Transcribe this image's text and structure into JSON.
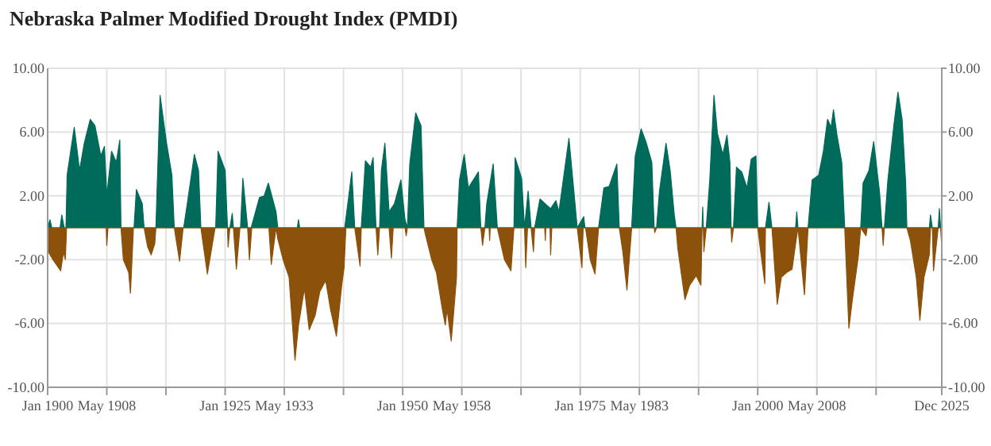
{
  "chart_data": {
    "type": "area",
    "title": "Nebraska Palmer Modified Drought Index (PMDI)",
    "xlim": [
      "1900-01",
      "2025-12"
    ],
    "xticks": [
      {
        "value": "1900-01",
        "label": "Jan 1900"
      },
      {
        "value": "1908-05",
        "label": "May 1908"
      },
      {
        "value": "1916-09",
        "label": null
      },
      {
        "value": "1925-01",
        "label": "Jan 1925"
      },
      {
        "value": "1933-05",
        "label": "May 1933"
      },
      {
        "value": "1941-09",
        "label": null
      },
      {
        "value": "1950-01",
        "label": "Jan 1950"
      },
      {
        "value": "1958-05",
        "label": "May 1958"
      },
      {
        "value": "1966-09",
        "label": null
      },
      {
        "value": "1975-01",
        "label": "Jan 1975"
      },
      {
        "value": "1983-05",
        "label": "May 1983"
      },
      {
        "value": "1991-09",
        "label": null
      },
      {
        "value": "2000-01",
        "label": "Jan 2000"
      },
      {
        "value": "2008-05",
        "label": "May 2008"
      },
      {
        "value": "2016-09",
        "label": null
      },
      {
        "value": "2025-12",
        "label": "Dec 2025"
      }
    ],
    "ylim": [
      -10,
      10
    ],
    "yticks": [
      {
        "value": -10,
        "label": "-10.00"
      },
      {
        "value": -6,
        "label": "-6.00"
      },
      {
        "value": -2,
        "label": "-2.00"
      },
      {
        "value": 2,
        "label": "2.00"
      },
      {
        "value": 6,
        "label": "6.00"
      },
      {
        "value": 10,
        "label": "10.00"
      }
    ],
    "y2lim": [
      -10,
      10
    ],
    "y2ticks": [
      {
        "value": -10,
        "label": "-10.00"
      },
      {
        "value": -6,
        "label": "-6.00"
      },
      {
        "value": -2,
        "label": "-2.00"
      },
      {
        "value": 2,
        "label": "2.00"
      },
      {
        "value": 6,
        "label": "6.00"
      },
      {
        "value": 10,
        "label": "10.00"
      }
    ],
    "grid": true,
    "series": [
      {
        "color": "#006a5b",
        "x": [
          "1900-01",
          "1900-05",
          "1900-08",
          "1901-10",
          "1902-01",
          "1902-05",
          "1902-08",
          "1902-10",
          "1903-10",
          "1904-07",
          "1905-03",
          "1906-01",
          "1906-09",
          "1907-07",
          "1908-01",
          "1908-05",
          "1909-01",
          "1909-09",
          "1910-03",
          "1910-05",
          "1912-03",
          "1912-07",
          "1913-05",
          "1913-08",
          "1915-04",
          "1915-11",
          "1916-10",
          "1917-07",
          "1917-11",
          "1919-03",
          "1919-09",
          "1920-09",
          "1921-04",
          "1921-08",
          "1923-09",
          "1924-01",
          "1925-01",
          "1925-05",
          "1925-09",
          "1926-01",
          "1926-03",
          "1927-03",
          "1927-07",
          "1928-03",
          "1928-09",
          "1929-11",
          "1930-07",
          "1931-02",
          "1932-03",
          "1932-06",
          "1935-03",
          "1935-05",
          "1935-07",
          "1941-11",
          "1942-06",
          "1942-11",
          "1943-04",
          "1944-03",
          "1944-10",
          "1945-07",
          "1945-11",
          "1946-04",
          "1946-10",
          "1947-01",
          "1947-07",
          "1948-02",
          "1948-11",
          "1949-10",
          "1950-05",
          "1950-09",
          "1951-01",
          "1951-11",
          "1952-08",
          "1953-01",
          "1957-09",
          "1958-01",
          "1958-09",
          "1959-04",
          "1960-09",
          "1961-01",
          "1961-08",
          "1961-11",
          "1962-10",
          "1963-05",
          "1965-09",
          "1965-11",
          "1966-10",
          "1967-03",
          "1967-09",
          "1968-02",
          "1968-08",
          "1969-05",
          "1970-02",
          "1970-11",
          "1971-08",
          "1972-01",
          "1973-06",
          "1974-08",
          "1975-07",
          "1975-09",
          "1977-08",
          "1978-05",
          "1979-02",
          "1980-03",
          "1980-07",
          "1982-04",
          "1982-10",
          "1983-08",
          "1984-04",
          "1985-02",
          "1985-06",
          "1985-10",
          "1986-03",
          "1987-02",
          "1987-09",
          "1988-04",
          "1988-07",
          "1992-03",
          "1992-04",
          "1992-05",
          "1992-10",
          "1993-04",
          "1993-11",
          "1994-05",
          "1995-02",
          "1995-09",
          "1996-02",
          "1996-04",
          "1996-08",
          "1997-01",
          "1997-10",
          "1998-07",
          "1999-02",
          "1999-10",
          "2000-01",
          "2001-02",
          "2001-08",
          "2002-01",
          "2005-05",
          "2005-07",
          "2005-09",
          "2007-02",
          "2007-09",
          "2008-08",
          "2009-04",
          "2009-11",
          "2010-05",
          "2010-09",
          "2011-03",
          "2011-11",
          "2012-04",
          "2014-07",
          "2014-11",
          "2015-09",
          "2016-05",
          "2017-03",
          "2017-07",
          "2017-11",
          "2018-05",
          "2019-03",
          "2019-10",
          "2020-05",
          "2020-11",
          "2021-01",
          "2024-03",
          "2024-05",
          "2024-08",
          "2025-06",
          "2025-08",
          "2025-10"
        ],
        "values": [
          0,
          0.5,
          0,
          0,
          0.8,
          0,
          0,
          3.3,
          6.3,
          3.6,
          5.3,
          6.8,
          6.4,
          4.5,
          5.1,
          2.0,
          4.8,
          4.1,
          5.5,
          0,
          0,
          2.4,
          1.5,
          0,
          0,
          8.3,
          5.3,
          3.3,
          0,
          0,
          1.5,
          4.6,
          3.6,
          0,
          0,
          4.8,
          3.6,
          0,
          0,
          0.9,
          0,
          0,
          3.1,
          0,
          0,
          1.9,
          2.0,
          2.8,
          1.0,
          0,
          0,
          0.5,
          0,
          0,
          2.0,
          3.5,
          0,
          0,
          4.2,
          3.8,
          4.4,
          0,
          0,
          3.6,
          5.3,
          1.0,
          1.5,
          3.0,
          0.5,
          0,
          4.0,
          7.2,
          6.4,
          0,
          0,
          3.0,
          4.6,
          2.5,
          3.5,
          0,
          0,
          1.5,
          4.0,
          0,
          0,
          4.4,
          3.1,
          0,
          2.3,
          0,
          0,
          1.8,
          1.5,
          1.2,
          1.7,
          1.0,
          5.6,
          0,
          0.7,
          0,
          0,
          2.5,
          2.6,
          4.0,
          0,
          0,
          4.5,
          6.2,
          5.4,
          4.1,
          0,
          0,
          2.3,
          5.3,
          3.6,
          0.8,
          0,
          0,
          1.3,
          0,
          0,
          3.0,
          8.3,
          5.9,
          4.6,
          5.8,
          4.1,
          0,
          0,
          3.8,
          3.5,
          2.5,
          4.3,
          4.5,
          0,
          0,
          1.6,
          0,
          0,
          1.0,
          0,
          0,
          3.0,
          3.3,
          4.8,
          6.8,
          6.3,
          7.4,
          5.8,
          4.1,
          0,
          0,
          2.8,
          3.6,
          5.4,
          2.2,
          0,
          0,
          3.0,
          6.4,
          8.5,
          6.8,
          2.8,
          0,
          0,
          0.8,
          0,
          0,
          1.2,
          0
        ]
      },
      {
        "color": "#8c510a",
        "x": [
          "1900-01",
          "1900-02",
          "1900-10",
          "1901-11",
          "1902-04",
          "1902-07",
          "1902-09",
          "1908-04",
          "1908-05",
          "1908-07",
          "1910-05",
          "1910-09",
          "1911-06",
          "1911-09",
          "1912-02",
          "1913-08",
          "1914-02",
          "1914-08",
          "1915-02",
          "1915-04",
          "1917-11",
          "1918-08",
          "1919-02",
          "1921-08",
          "1922-07",
          "1923-08",
          "1925-05",
          "1925-06",
          "1925-09",
          "1926-03",
          "1926-08",
          "1927-02",
          "1928-03",
          "1928-06",
          "1928-10",
          "1931-03",
          "1931-07",
          "1932-03",
          "1932-06",
          "1933-03",
          "1934-01",
          "1934-11",
          "1935-05",
          "1936-03",
          "1936-11",
          "1937-09",
          "1938-05",
          "1939-03",
          "1939-11",
          "1940-09",
          "1941-06",
          "1941-10",
          "1942-01",
          "1943-04",
          "1944-01",
          "1944-03",
          "1946-04",
          "1946-07",
          "1946-10",
          "1948-02",
          "1948-06",
          "1948-09",
          "1950-05",
          "1950-07",
          "1950-09",
          "1953-01",
          "1953-04",
          "1954-02",
          "1954-10",
          "1955-08",
          "1956-01",
          "1956-04",
          "1956-11",
          "1957-03",
          "1957-08",
          "1957-09",
          "1961-01",
          "1961-04",
          "1961-08",
          "1962-03",
          "1962-04",
          "1962-05",
          "1963-05",
          "1964-05",
          "1965-04",
          "1965-09",
          "1967-03",
          "1967-05",
          "1967-08",
          "1968-02",
          "1968-06",
          "1968-08",
          "1970-01",
          "1970-02",
          "1970-03",
          "1970-10",
          "1970-11",
          "1971-01",
          "1974-08",
          "1975-04",
          "1975-06",
          "1975-10",
          "1976-06",
          "1977-02",
          "1977-08",
          "1980-07",
          "1981-01",
          "1981-08",
          "1982-04",
          "1985-06",
          "1985-07",
          "1985-10",
          "1988-07",
          "1988-10",
          "1989-10",
          "1990-06",
          "1991-05",
          "1992-01",
          "1992-03",
          "1992-05",
          "1992-06",
          "1992-10",
          "1996-04",
          "1996-05",
          "1996-08",
          "2000-01",
          "2000-06",
          "2001-01",
          "2001-02",
          "2002-01",
          "2002-10",
          "2003-05",
          "2004-02",
          "2004-11",
          "2005-05",
          "2005-09",
          "2006-08",
          "2007-02",
          "2012-04",
          "2012-11",
          "2013-05",
          "2014-03",
          "2014-07",
          "2015-04",
          "2015-06",
          "2017-07",
          "2017-09",
          "2017-11",
          "2021-01",
          "2021-07",
          "2022-05",
          "2022-11",
          "2023-06",
          "2024-03",
          "2024-05",
          "2024-08",
          "2024-10",
          "2025-06",
          "2025-10",
          "2025-12"
        ],
        "values": [
          0,
          -1.5,
          -2.0,
          -2.7,
          -1.5,
          -2.0,
          0,
          0,
          -1.1,
          0,
          0,
          -2.0,
          -2.8,
          -4.1,
          0,
          0,
          -1.2,
          -1.7,
          -1.0,
          0,
          0,
          -2.1,
          0,
          0,
          -2.9,
          0,
          0,
          -1.2,
          0,
          0,
          -2.6,
          0,
          0,
          -2.0,
          0,
          0,
          -2.3,
          0,
          -0.7,
          -2.0,
          -3.1,
          -8.3,
          -6.1,
          -3.8,
          -6.4,
          -5.5,
          -4.0,
          -3.3,
          -5.1,
          -6.8,
          -3.6,
          -2.5,
          0,
          0,
          -2.4,
          0,
          0,
          -1.7,
          0,
          0,
          -1.9,
          0,
          0,
          -0.5,
          0,
          0,
          -0.5,
          -2.0,
          -2.8,
          -5.1,
          -6.1,
          -5.1,
          -7.1,
          -5.4,
          -3.1,
          0,
          0,
          -1.1,
          0,
          0,
          -0.8,
          0,
          0,
          -2.0,
          -2.7,
          0,
          0,
          -2.5,
          0,
          0,
          -1.5,
          0,
          0,
          -0.8,
          0,
          0,
          -1.7,
          0,
          0,
          -2.5,
          0,
          0,
          -2.0,
          -2.9,
          0,
          0,
          -1.5,
          -3.9,
          0,
          0,
          -0.3,
          0,
          0,
          -1.3,
          -4.5,
          -3.6,
          -3.0,
          -3.6,
          0,
          0,
          -1.5,
          0,
          0,
          -0.9,
          0,
          0,
          -1.5,
          -3.5,
          0,
          0,
          -4.8,
          -3.1,
          -2.8,
          -2.6,
          -1.0,
          0,
          -4.2,
          0,
          0,
          -6.3,
          -4.5,
          -1.8,
          0,
          -0.5,
          0,
          0,
          -1.1,
          0,
          0,
          -0.8,
          -3.1,
          -5.8,
          -3.1,
          -1.7,
          0,
          0,
          -2.7,
          0,
          0,
          -1.2
        ]
      }
    ]
  }
}
